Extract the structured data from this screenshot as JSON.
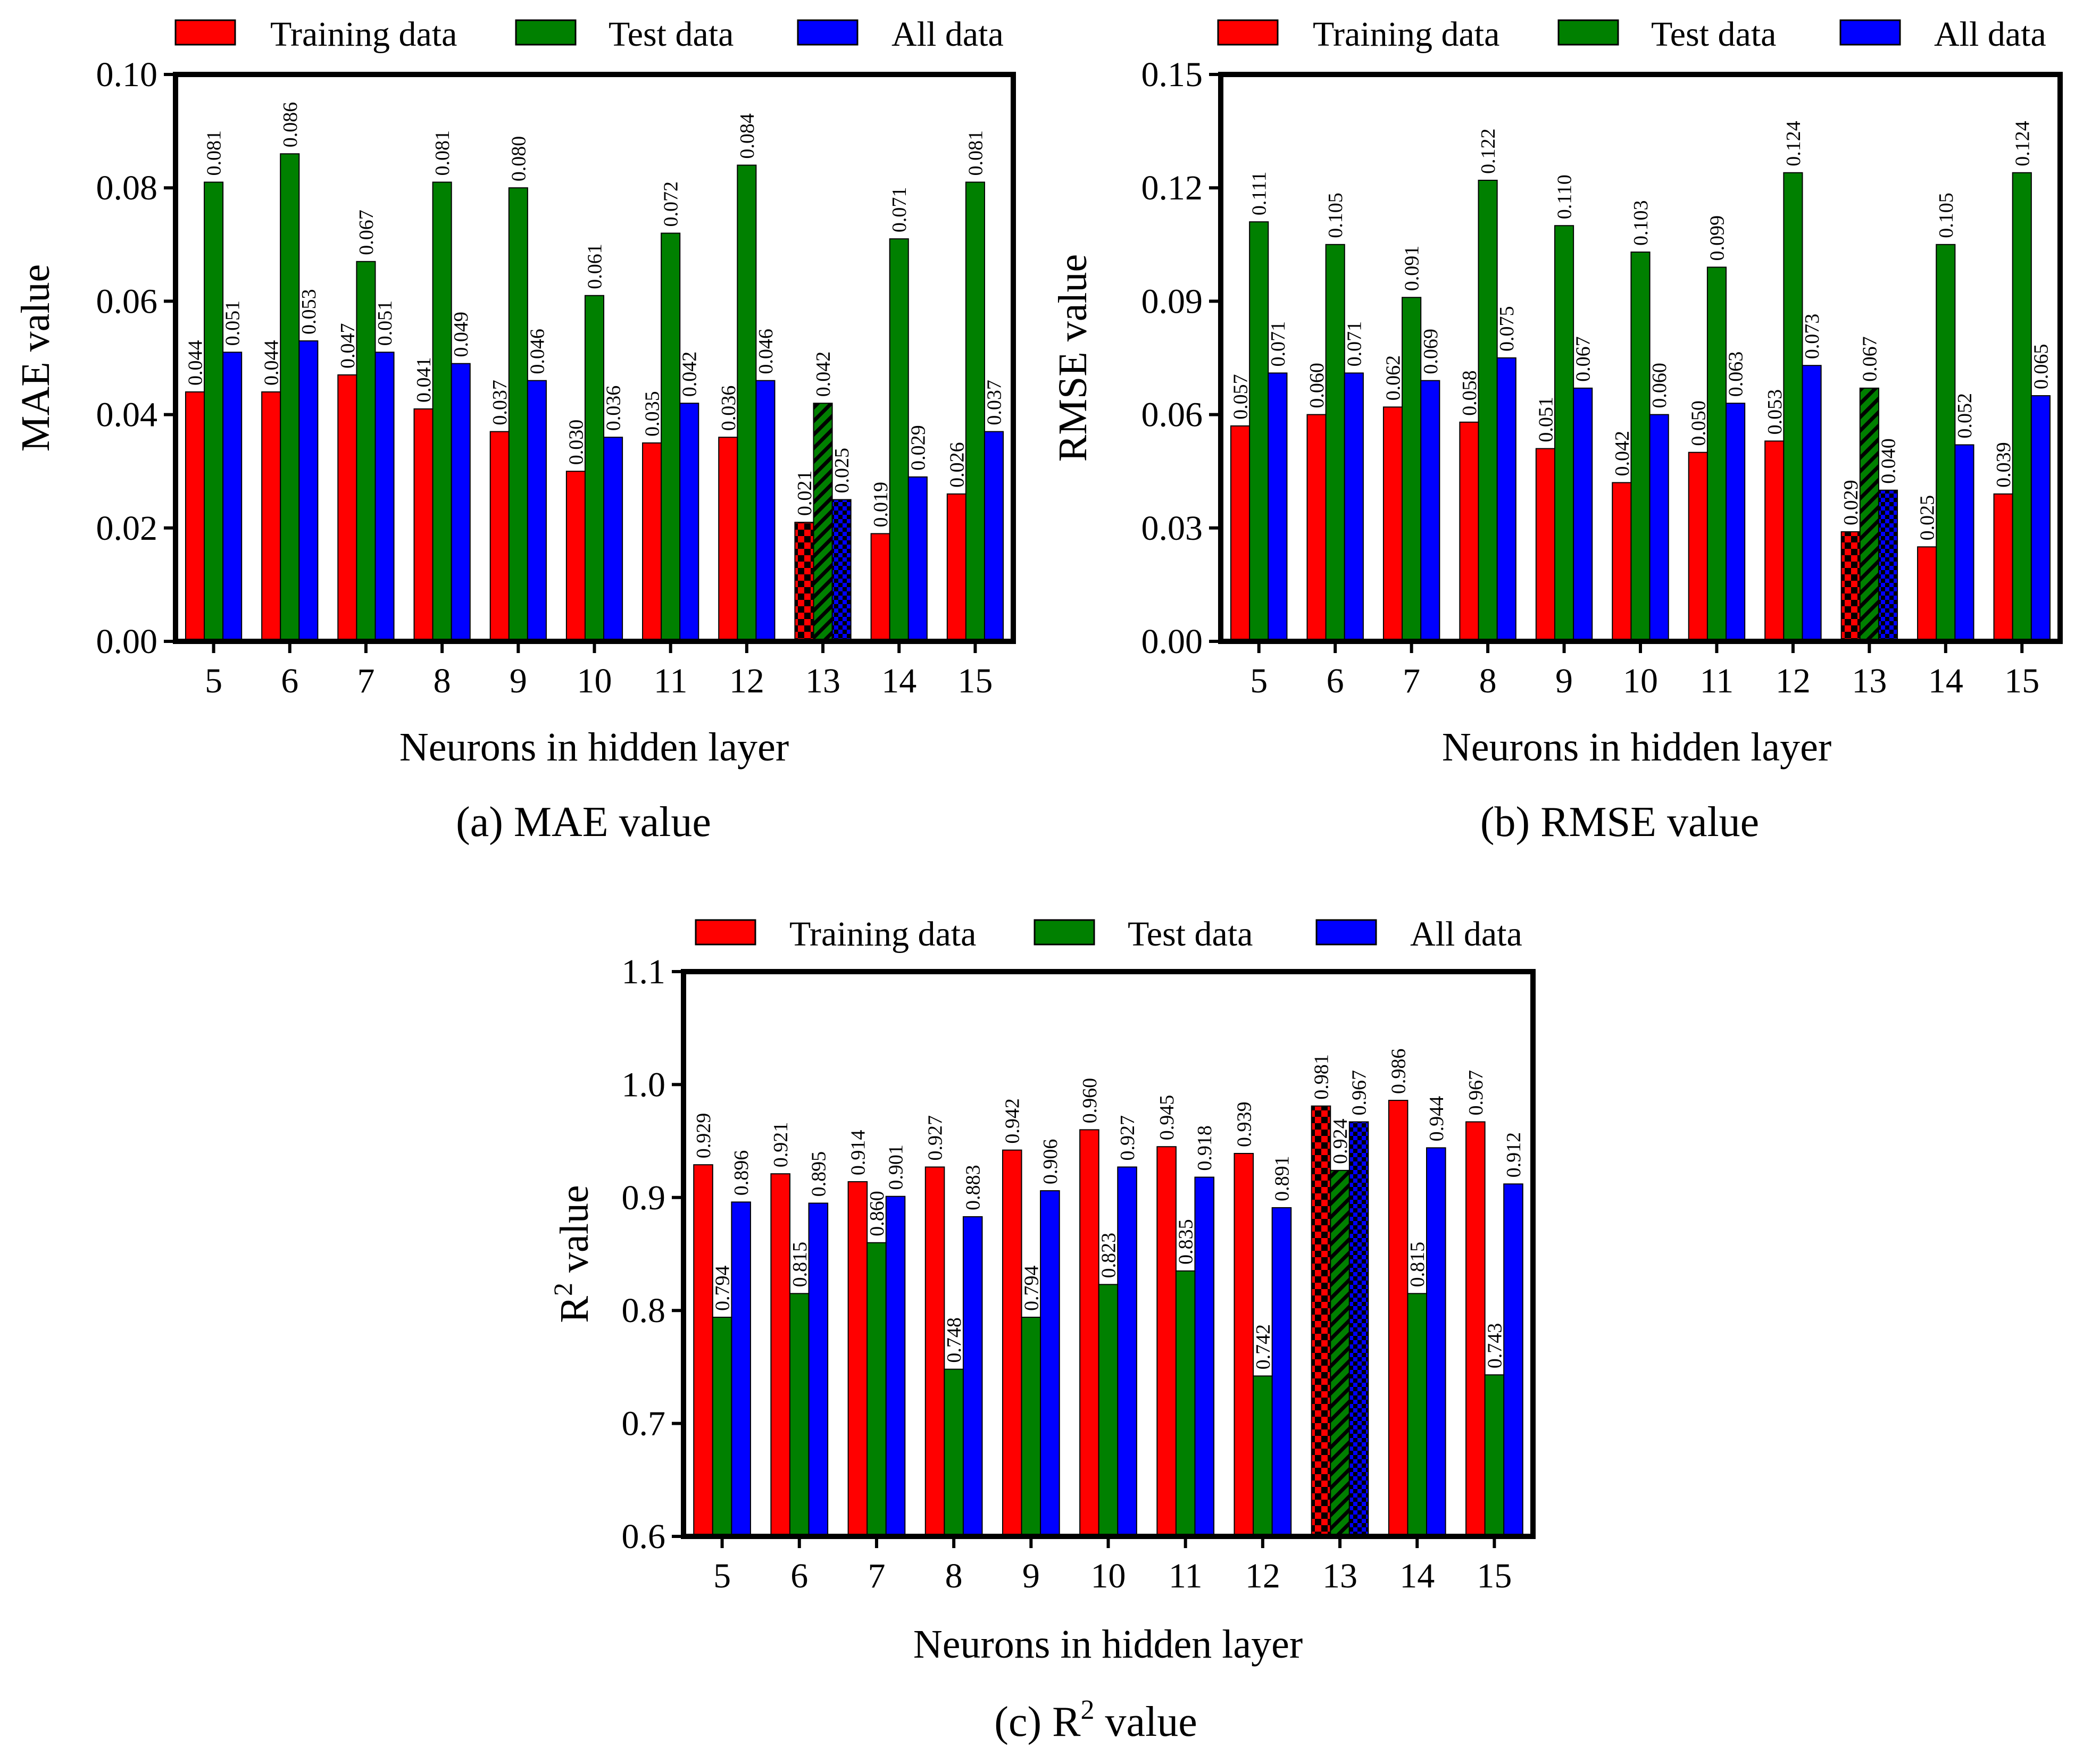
{
  "colors": {
    "training": "#ff0000",
    "test": "#008000",
    "all": "#0000ff",
    "axis": "#000000"
  },
  "legend": [
    "Training data",
    "Test data",
    "All data"
  ],
  "chart_data": [
    {
      "type": "bar",
      "id": "mae",
      "title": "(a) MAE value",
      "xlabel": "Neurons in hidden layer",
      "ylabel": "MAE value",
      "ylim": [
        0,
        0.1
      ],
      "yticks": [
        "0.00",
        "0.02",
        "0.04",
        "0.06",
        "0.08",
        "0.10"
      ],
      "categories": [
        "5",
        "6",
        "7",
        "8",
        "9",
        "10",
        "11",
        "12",
        "13",
        "14",
        "15"
      ],
      "highlight_category": "13",
      "series": [
        {
          "name": "Training data",
          "values": [
            0.044,
            0.044,
            0.047,
            0.041,
            0.037,
            0.03,
            0.035,
            0.036,
            0.021,
            0.019,
            0.026
          ],
          "labels": [
            "0.044",
            "0.044",
            "0.047",
            "0.041",
            "0.037",
            "0.030",
            "0.035",
            "0.036",
            "0.021",
            "0.019",
            "0.026"
          ]
        },
        {
          "name": "Test data",
          "values": [
            0.081,
            0.086,
            0.067,
            0.081,
            0.08,
            0.061,
            0.072,
            0.084,
            0.042,
            0.071,
            0.081
          ],
          "labels": [
            "0.081",
            "0.086",
            "0.067",
            "0.081",
            "0.080",
            "0.061",
            "0.072",
            "0.084",
            "0.042",
            "0.071",
            "0.081"
          ]
        },
        {
          "name": "All data",
          "values": [
            0.051,
            0.053,
            0.051,
            0.049,
            0.046,
            0.036,
            0.042,
            0.046,
            0.025,
            0.029,
            0.037
          ],
          "labels": [
            "0.051",
            "0.053",
            "0.051",
            "0.049",
            "0.046",
            "0.036",
            "0.042",
            "0.046",
            "0.025",
            "0.029",
            "0.037"
          ]
        }
      ]
    },
    {
      "type": "bar",
      "id": "rmse",
      "title": "(b) RMSE value",
      "xlabel": "Neurons in hidden layer",
      "ylabel": "RMSE value",
      "ylim": [
        0,
        0.15
      ],
      "yticks": [
        "0.00",
        "0.03",
        "0.06",
        "0.09",
        "0.12",
        "0.15"
      ],
      "categories": [
        "5",
        "6",
        "7",
        "8",
        "9",
        "10",
        "11",
        "12",
        "13",
        "14",
        "15"
      ],
      "highlight_category": "13",
      "series": [
        {
          "name": "Training data",
          "values": [
            0.057,
            0.06,
            0.062,
            0.058,
            0.051,
            0.042,
            0.05,
            0.053,
            0.029,
            0.025,
            0.039
          ],
          "labels": [
            "0.057",
            "0.060",
            "0.062",
            "0.058",
            "0.051",
            "0.042",
            "0.050",
            "0.053",
            "0.029",
            "0.025",
            "0.039"
          ]
        },
        {
          "name": "Test data",
          "values": [
            0.111,
            0.105,
            0.091,
            0.122,
            0.11,
            0.103,
            0.099,
            0.124,
            0.067,
            0.105,
            0.124
          ],
          "labels": [
            "0.111",
            "0.105",
            "0.091",
            "0.122",
            "0.110",
            "0.103",
            "0.099",
            "0.124",
            "0.067",
            "0.105",
            "0.124"
          ]
        },
        {
          "name": "All data",
          "values": [
            0.071,
            0.071,
            0.069,
            0.075,
            0.067,
            0.06,
            0.063,
            0.073,
            0.04,
            0.052,
            0.065
          ],
          "labels": [
            "0.071",
            "0.071",
            "0.069",
            "0.075",
            "0.067",
            "0.060",
            "0.063",
            "0.073",
            "0.040",
            "0.052",
            "0.065"
          ]
        }
      ]
    },
    {
      "type": "bar",
      "id": "r2",
      "title_prefix": "(c) R",
      "title_sup": "2",
      "title_suffix": " value",
      "xlabel": "Neurons in hidden layer",
      "ylabel_prefix": "R",
      "ylabel_sup": "2",
      "ylabel_suffix": " value",
      "ylim": [
        0.6,
        1.1
      ],
      "yticks": [
        "0.6",
        "0.7",
        "0.8",
        "0.9",
        "1.0",
        "1.1"
      ],
      "categories": [
        "5",
        "6",
        "7",
        "8",
        "9",
        "10",
        "11",
        "12",
        "13",
        "14",
        "15"
      ],
      "highlight_category": "13",
      "series": [
        {
          "name": "Training data",
          "values": [
            0.929,
            0.921,
            0.914,
            0.927,
            0.942,
            0.96,
            0.945,
            0.939,
            0.981,
            0.986,
            0.967
          ],
          "labels": [
            "0.929",
            "0.921",
            "0.914",
            "0.927",
            "0.942",
            "0.960",
            "0.945",
            "0.939",
            "0.981",
            "0.986",
            "0.967"
          ]
        },
        {
          "name": "Test data",
          "values": [
            0.794,
            0.815,
            0.86,
            0.748,
            0.794,
            0.823,
            0.835,
            0.742,
            0.924,
            0.815,
            0.743
          ],
          "labels": [
            "0.794",
            "0.815",
            "0.860",
            "0.748",
            "0.794",
            "0.823",
            "0.835",
            "0.742",
            "0.924",
            "0.815",
            "0.743"
          ]
        },
        {
          "name": "All data",
          "values": [
            0.896,
            0.895,
            0.901,
            0.883,
            0.906,
            0.927,
            0.918,
            0.891,
            0.967,
            0.944,
            0.912
          ],
          "labels": [
            "0.896",
            "0.895",
            "0.901",
            "0.883",
            "0.906",
            "0.927",
            "0.918",
            "0.891",
            "0.967",
            "0.944",
            "0.912"
          ]
        }
      ]
    }
  ]
}
